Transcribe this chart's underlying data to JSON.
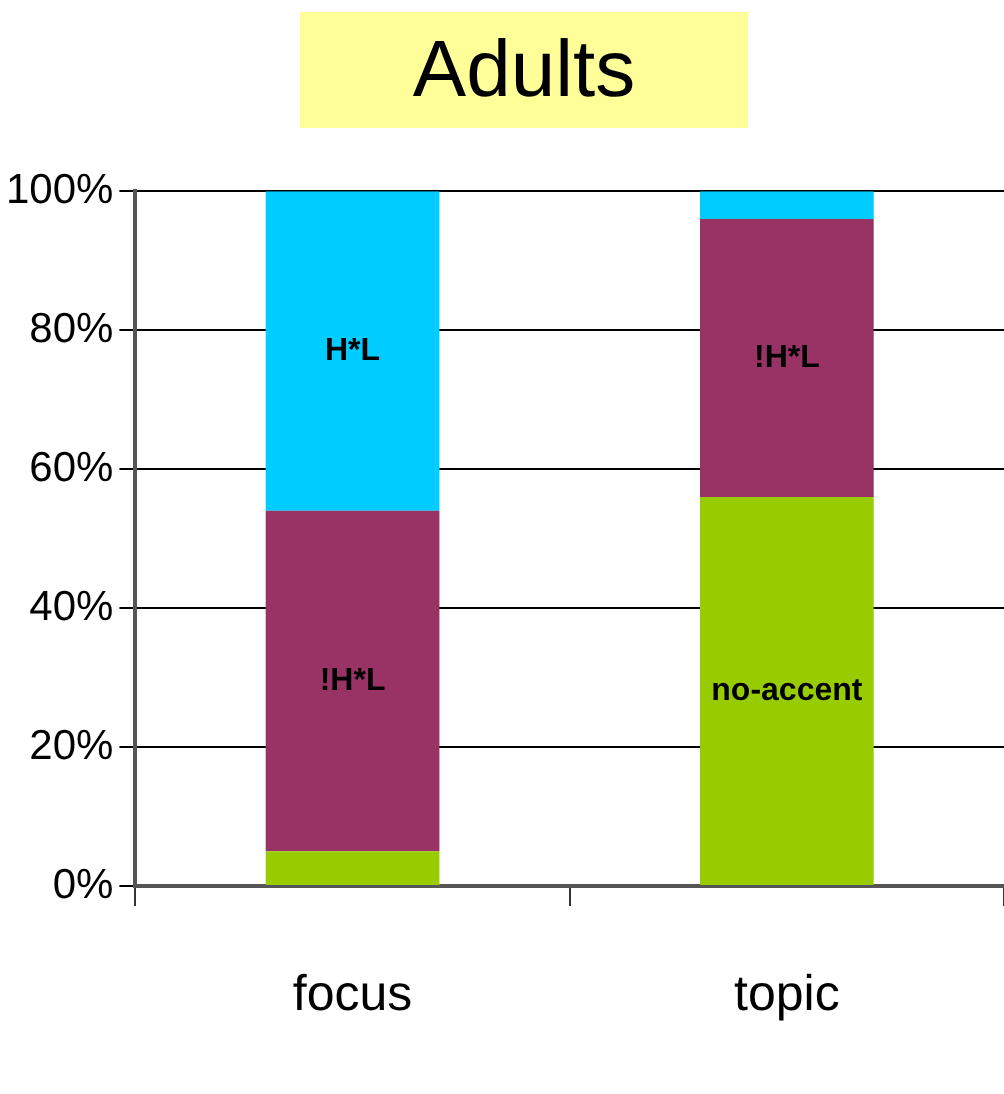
{
  "chart_data": {
    "type": "bar",
    "title": "Adults",
    "stacked": true,
    "categories": [
      "focus",
      "topic"
    ],
    "series": [
      {
        "color": "#99cc00",
        "values": [
          5,
          56
        ],
        "value_labels": [
          null,
          "no-accent"
        ]
      },
      {
        "color": "#993366",
        "values": [
          49,
          40
        ],
        "value_labels": [
          "!H*L",
          "!H*L"
        ]
      },
      {
        "color": "#00ccff",
        "values": [
          46,
          4
        ],
        "value_labels": [
          "H*L",
          null
        ]
      }
    ],
    "ylim": [
      0,
      100
    ],
    "yticks": [
      {
        "value": 0,
        "label": "0%"
      },
      {
        "value": 20,
        "label": "20%"
      },
      {
        "value": 40,
        "label": "40%"
      },
      {
        "value": 60,
        "label": "60%"
      },
      {
        "value": 80,
        "label": "80%"
      },
      {
        "value": 100,
        "label": "100%"
      }
    ],
    "grid": "y",
    "legend": false
  }
}
